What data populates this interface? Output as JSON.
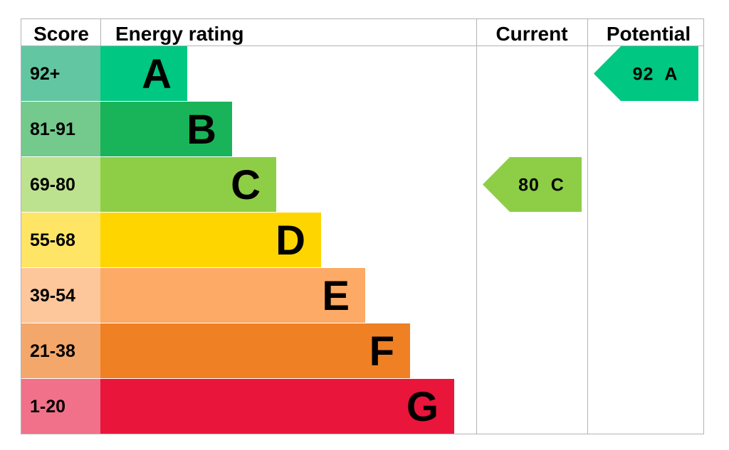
{
  "headers": {
    "score": "Score",
    "energy_rating": "Energy rating",
    "current": "Current",
    "potential": "Potential"
  },
  "chart_data": {
    "type": "bar",
    "bands": [
      {
        "letter": "A",
        "range": "92+",
        "color": "#00c781",
        "score_bg": "#63c6a2"
      },
      {
        "letter": "B",
        "range": "81-91",
        "color": "#19b459",
        "score_bg": "#74c98c"
      },
      {
        "letter": "C",
        "range": "69-80",
        "color": "#8dce46",
        "score_bg": "#bde28f"
      },
      {
        "letter": "D",
        "range": "55-68",
        "color": "#ffd500",
        "score_bg": "#ffe566"
      },
      {
        "letter": "E",
        "range": "39-54",
        "color": "#fcaa65",
        "score_bg": "#fdc79b"
      },
      {
        "letter": "F",
        "range": "21-38",
        "color": "#ef8023",
        "score_bg": "#f3a76b"
      },
      {
        "letter": "G",
        "range": "1-20",
        "color": "#e9153b",
        "score_bg": "#f07189"
      }
    ],
    "current": {
      "value": 80,
      "letter": "C",
      "text": "80  C",
      "color": "#8dce46"
    },
    "potential": {
      "value": 92,
      "letter": "A",
      "text": "92  A",
      "color": "#00c781"
    }
  }
}
